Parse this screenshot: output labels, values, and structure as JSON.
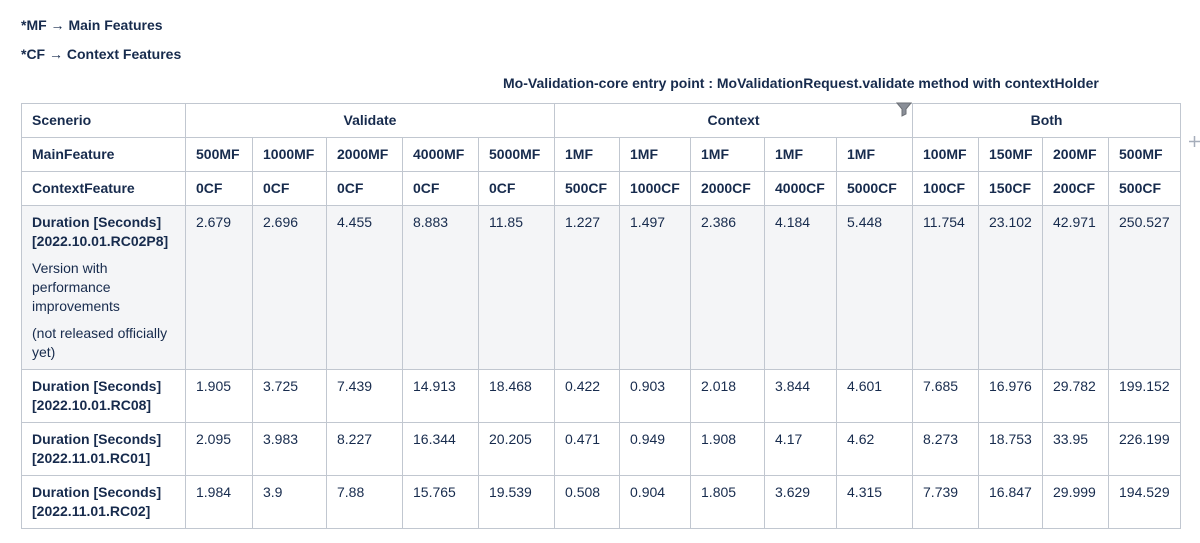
{
  "notes": [
    "*MF → Main Features",
    "*CF → Context Features"
  ],
  "caption": "Mo-Validation-core entry point : MoValidationRequest.validate method with contextHolder",
  "table": {
    "corner": "Scenerio",
    "main_feature_label": "MainFeature",
    "context_feature_label": "ContextFeature",
    "groups": [
      {
        "name": "Validate",
        "columns": [
          {
            "main": "500MF",
            "context": "0CF"
          },
          {
            "main": "1000MF",
            "context": "0CF"
          },
          {
            "main": "2000MF",
            "context": "0CF"
          },
          {
            "main": "4000MF",
            "context": "0CF"
          },
          {
            "main": "5000MF",
            "context": "0CF"
          }
        ]
      },
      {
        "name": "Context",
        "columns": [
          {
            "main": "1MF",
            "context": "500CF"
          },
          {
            "main": "1MF",
            "context": "1000CF"
          },
          {
            "main": "1MF",
            "context": "2000CF"
          },
          {
            "main": "1MF",
            "context": "4000CF"
          },
          {
            "main": "1MF",
            "context": "5000CF"
          }
        ]
      },
      {
        "name": "Both",
        "columns": [
          {
            "main": "100MF",
            "context": "100CF"
          },
          {
            "main": "150MF",
            "context": "150CF"
          },
          {
            "main": "200MF",
            "context": "200CF"
          },
          {
            "main": "500MF",
            "context": "500CF"
          }
        ]
      }
    ],
    "rows": [
      {
        "label": "Duration [Seconds] [2022.10.01.RC02P8]",
        "notes": [
          "Version with performance improvements",
          "(not released officially yet)"
        ],
        "values": [
          2.679,
          2.696,
          4.455,
          8.883,
          11.85,
          1.227,
          1.497,
          2.386,
          4.184,
          5.448,
          11.754,
          23.102,
          42.971,
          250.527
        ]
      },
      {
        "label": "Duration [Seconds] [2022.10.01.RC08]",
        "values": [
          1.905,
          3.725,
          7.439,
          14.913,
          18.468,
          0.422,
          0.903,
          2.018,
          3.844,
          4.601,
          7.685,
          16.976,
          29.782,
          199.152
        ]
      },
      {
        "label": "Duration [Seconds] [2022.11.01.RC01]",
        "values": [
          2.095,
          3.983,
          8.227,
          16.344,
          20.205,
          0.471,
          0.949,
          1.908,
          4.17,
          4.62,
          8.273,
          18.753,
          33.95,
          226.199
        ]
      },
      {
        "label": "Duration [Seconds] [2022.11.01.RC02]",
        "values": [
          1.984,
          3.9,
          7.88,
          15.765,
          19.539,
          0.508,
          0.904,
          1.805,
          3.629,
          4.315,
          7.739,
          16.847,
          29.999,
          194.529
        ]
      }
    ]
  }
}
